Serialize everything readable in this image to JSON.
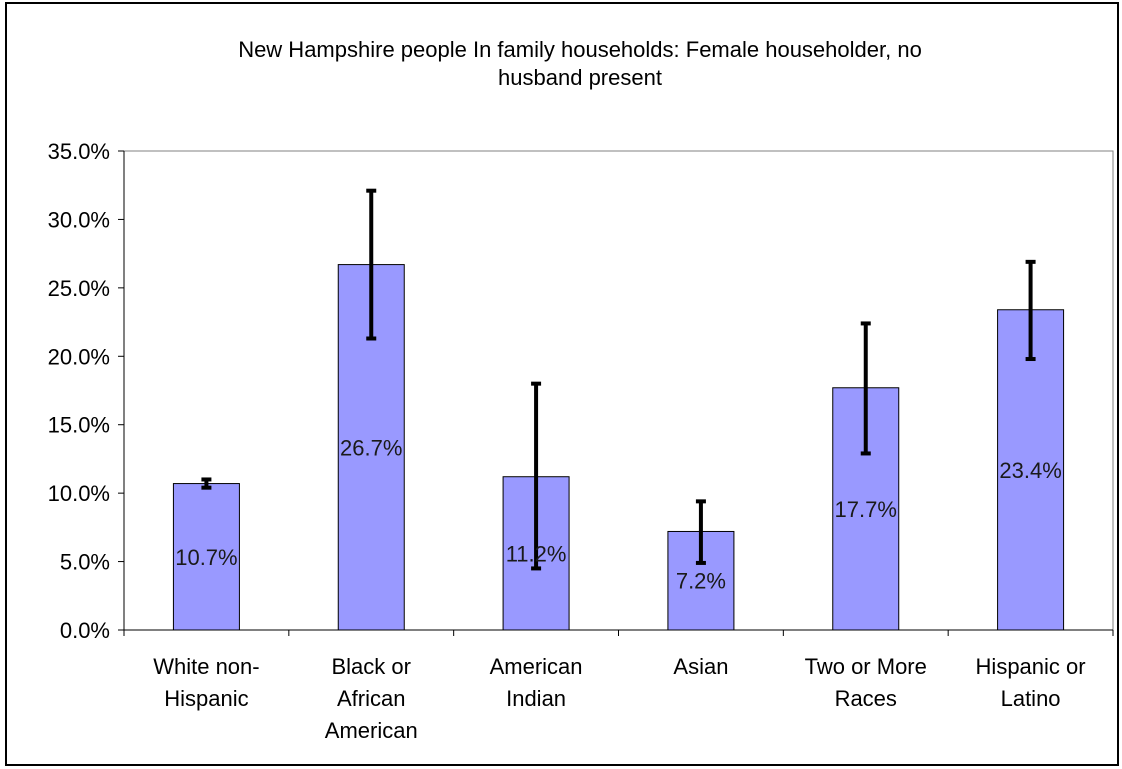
{
  "chart_data": {
    "type": "bar",
    "title_lines": [
      "New Hampshire people In family households: Female householder, no",
      "husband present"
    ],
    "xlabel": "",
    "ylabel": "",
    "categories": [
      [
        "White non-",
        "Hispanic"
      ],
      [
        "Black or",
        "African",
        "American"
      ],
      [
        "American",
        "Indian"
      ],
      [
        "Asian"
      ],
      [
        "Two or More",
        "Races"
      ],
      [
        "Hispanic or",
        "Latino"
      ]
    ],
    "values": [
      10.7,
      26.7,
      11.2,
      7.2,
      17.7,
      23.4
    ],
    "data_labels": [
      "10.7%",
      "26.7%",
      "11.2%",
      "7.2%",
      "17.7%",
      "23.4%"
    ],
    "error_low": [
      10.4,
      21.3,
      4.5,
      4.9,
      12.9,
      19.8
    ],
    "error_high": [
      11.0,
      32.1,
      18.0,
      9.4,
      22.4,
      26.9
    ],
    "ylim": [
      0,
      35
    ],
    "yticks": [
      0,
      5,
      10,
      15,
      20,
      25,
      30,
      35
    ],
    "ytick_labels": [
      "0.0%",
      "5.0%",
      "10.0%",
      "15.0%",
      "20.0%",
      "25.0%",
      "30.0%",
      "35.0%"
    ],
    "grid": false,
    "legend": "none",
    "bar_color": "#9999ff",
    "bar_edge_color": "#000000",
    "error_color": "#000000"
  }
}
